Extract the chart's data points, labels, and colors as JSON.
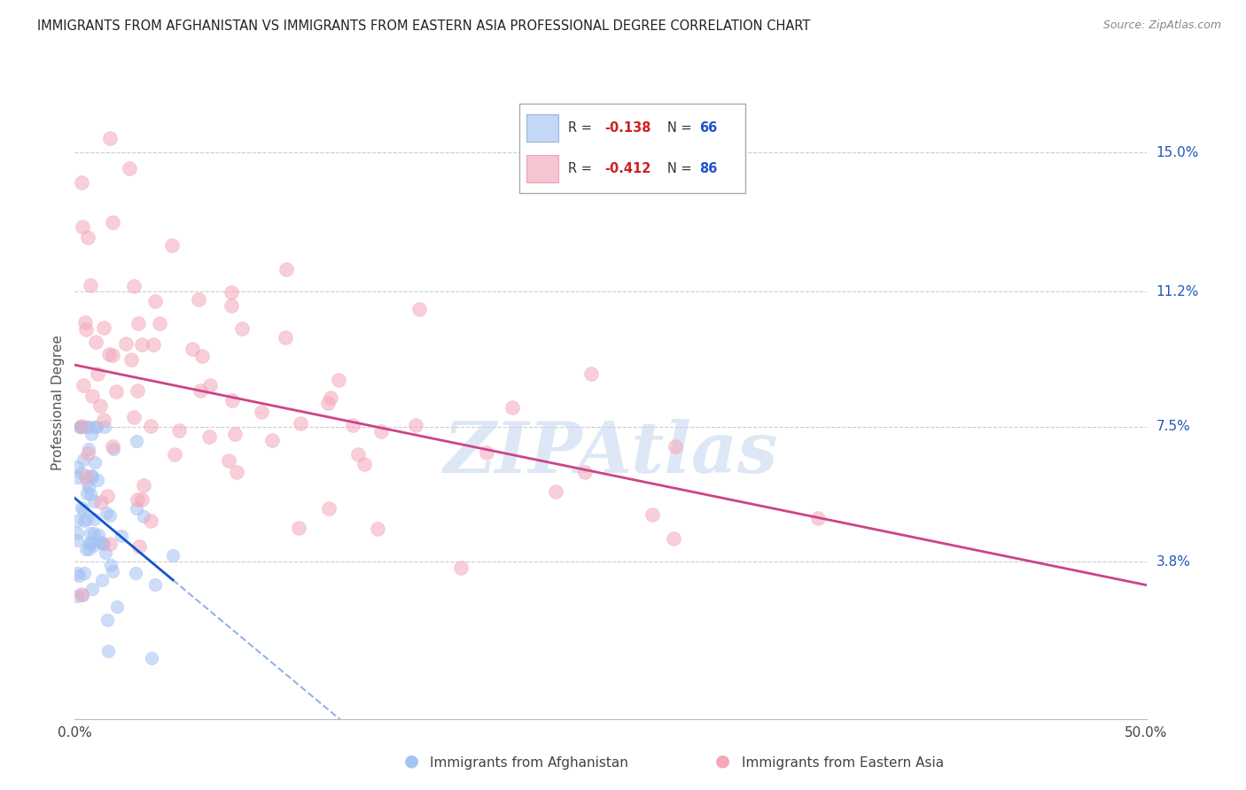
{
  "title": "IMMIGRANTS FROM AFGHANISTAN VS IMMIGRANTS FROM EASTERN ASIA PROFESSIONAL DEGREE CORRELATION CHART",
  "source": "Source: ZipAtlas.com",
  "ylabel": "Professional Degree",
  "xmin": 0.0,
  "xmax": 0.5,
  "ymin": -0.005,
  "ymax": 0.168,
  "ytick_labels_right": [
    "15.0%",
    "11.2%",
    "7.5%",
    "3.8%"
  ],
  "ytick_values_right": [
    0.15,
    0.112,
    0.075,
    0.038
  ],
  "afghanistan_R": -0.138,
  "afghanistan_N": 66,
  "eastern_asia_R": -0.412,
  "eastern_asia_N": 86,
  "afghanistan_color": "#a4c2f4",
  "eastern_asia_color": "#f4a7b9",
  "afghanistan_line_color": "#1155cc",
  "eastern_asia_line_color": "#cc4488",
  "watermark": "ZIPAtlas",
  "watermark_color": "#c8d8f0",
  "afg_trend_x_solid_end": 0.07,
  "ea_trend_x_start": 0.0,
  "ea_trend_x_end": 0.5,
  "afg_trend_y_start": 0.048,
  "afg_trend_y_at_solid_end": 0.033,
  "afg_trend_y_end": 0.005,
  "ea_trend_y_start": 0.098,
  "ea_trend_y_end": 0.038
}
